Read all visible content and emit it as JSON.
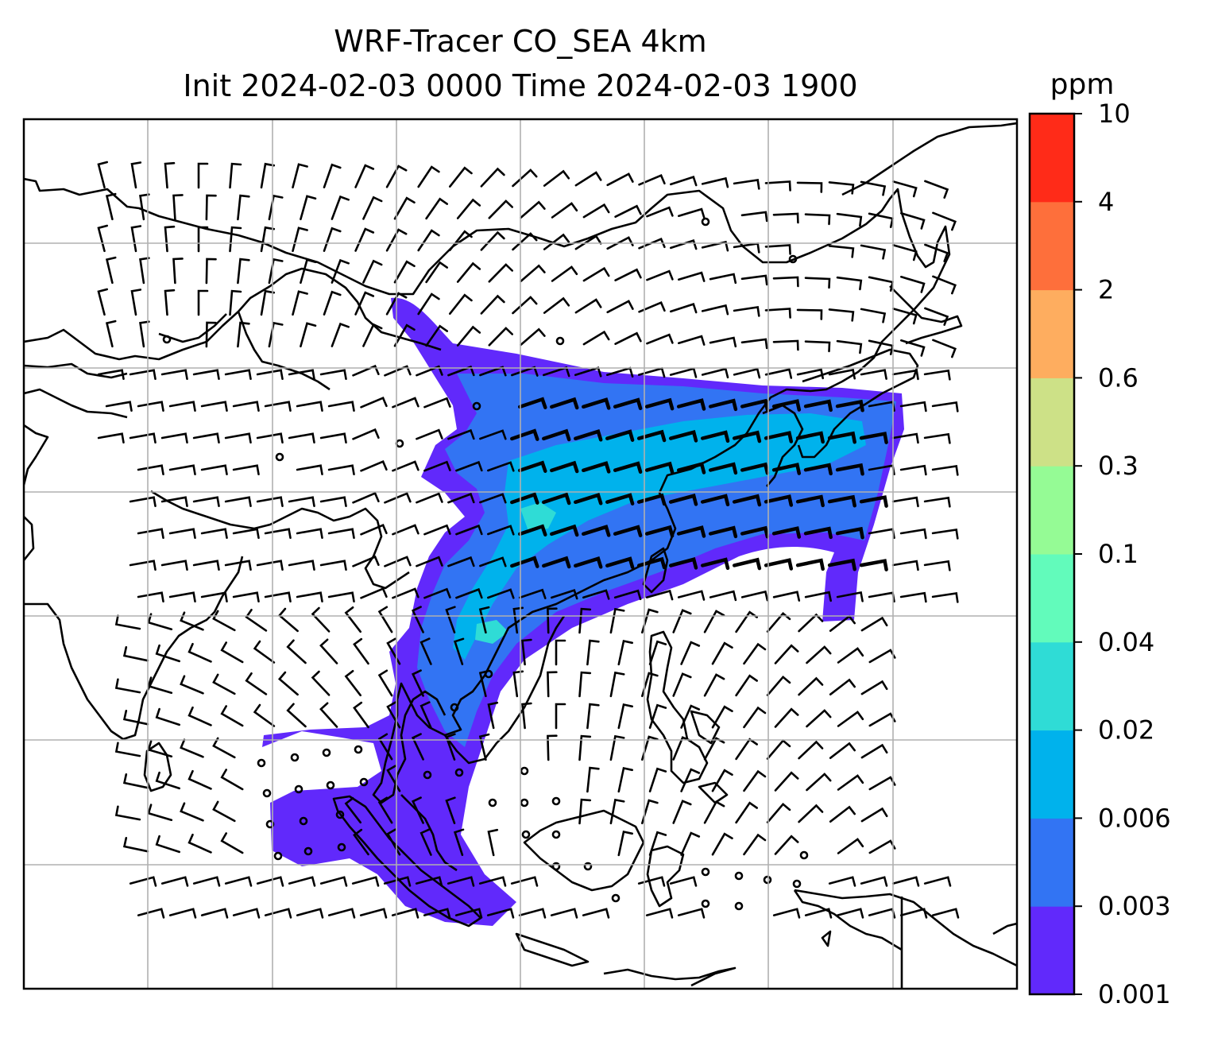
{
  "title": {
    "line1": "WRF-Tracer CO_SEA 4km",
    "line2": "Init 2024-02-03 0000 Time 2024-02-03 1900"
  },
  "colorbar": {
    "unit": "ppm",
    "levels": [
      "0.001",
      "0.003",
      "0.006",
      "0.02",
      "0.04",
      "0.1",
      "0.3",
      "0.6",
      "2",
      "4",
      "10"
    ],
    "colors": [
      "#6129fb",
      "#3274f3",
      "#00b2ec",
      "#2fdcd6",
      "#62fbbb",
      "#95fb95",
      "#cde187",
      "#fead5f",
      "#fe6f3b",
      "#ff2b18"
    ]
  },
  "map": {
    "ocean_color": "#ffffff",
    "coastline_color": "#000000",
    "grid_color": "#b0b0b0",
    "wind_barb_color": "#000000"
  }
}
